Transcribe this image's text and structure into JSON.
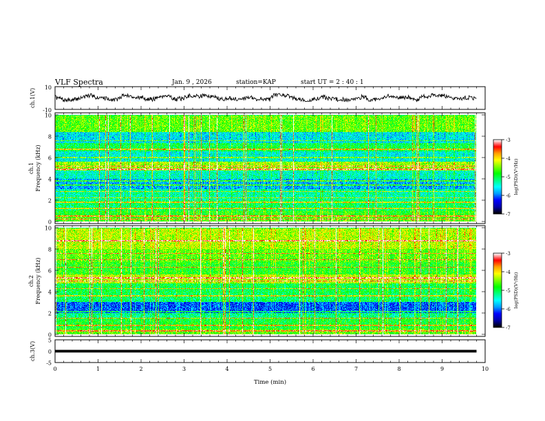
{
  "header": {
    "title": "VLF Spectra",
    "date": "Jan. 9 , 2026",
    "station": "station=KAP",
    "start": "start UT = 2 : 40 : 1"
  },
  "colorbar": {
    "label": "log(PSD)(V²/Hz)",
    "ticks": [
      "-3",
      "-4",
      "-5",
      "-6",
      "-7"
    ],
    "range": [
      -7,
      -3
    ],
    "colors": [
      "#000000",
      "#0000aa",
      "#0000ff",
      "#00a0ff",
      "#00ffff",
      "#00ff80",
      "#00ff00",
      "#80ff00",
      "#ffff00",
      "#ffa000",
      "#ff0000",
      "#ffffff"
    ]
  },
  "chart_data": [
    {
      "type": "line",
      "title": "",
      "ylabel": "ch.1(V)",
      "xlabel": "",
      "xlim": [
        0,
        10
      ],
      "ylim": [
        -10,
        10
      ],
      "y_ticks": [
        "10",
        "-10"
      ],
      "series": [
        {
          "name": "ch.1",
          "x_range": [
            0,
            9.8
          ],
          "mean": 0,
          "amplitude": 3.5,
          "description": "noisy waveform"
        }
      ]
    },
    {
      "type": "heatmap",
      "title": "",
      "ylabel_channel": "ch.1",
      "ylabel": "Frequency (kHz)",
      "xlim": [
        0,
        9.8
      ],
      "ylim": [
        0,
        10
      ],
      "y_ticks": [
        "0",
        "2",
        "4",
        "6",
        "8",
        "10"
      ],
      "value_range": [
        -7,
        -3
      ],
      "bands": [
        {
          "f_lo": 0.0,
          "f_hi": 0.5,
          "level": -4.6
        },
        {
          "f_lo": 0.5,
          "f_hi": 1.0,
          "level": -4.8
        },
        {
          "f_lo": 1.0,
          "f_hi": 2.0,
          "level": -5.1
        },
        {
          "f_lo": 2.0,
          "f_hi": 3.0,
          "level": -5.3
        },
        {
          "f_lo": 3.0,
          "f_hi": 4.0,
          "level": -5.8
        },
        {
          "f_lo": 4.0,
          "f_hi": 4.8,
          "level": -5.4
        },
        {
          "f_lo": 4.8,
          "f_hi": 5.6,
          "level": -4.4
        },
        {
          "f_lo": 5.6,
          "f_hi": 6.6,
          "level": -5.5
        },
        {
          "f_lo": 6.6,
          "f_hi": 7.4,
          "level": -5.0
        },
        {
          "f_lo": 7.4,
          "f_hi": 8.4,
          "level": -5.6
        },
        {
          "f_lo": 8.4,
          "f_hi": 10.0,
          "level": -4.6
        }
      ],
      "lines_khz": [
        0.2,
        0.5,
        1.2,
        1.8,
        2.2,
        2.8,
        3.4,
        3.8,
        4.9,
        5.2,
        6.0,
        6.8,
        7.6
      ],
      "seed": 17
    },
    {
      "type": "heatmap",
      "title": "",
      "ylabel_channel": "ch.2",
      "ylabel": "Frequency (kHz)",
      "xlim": [
        0,
        9.8
      ],
      "ylim": [
        0,
        10
      ],
      "y_ticks": [
        "0",
        "2",
        "4",
        "6",
        "8",
        "10"
      ],
      "value_range": [
        -7,
        -3
      ],
      "bands": [
        {
          "f_lo": 0.0,
          "f_hi": 0.5,
          "level": -4.6
        },
        {
          "f_lo": 0.5,
          "f_hi": 1.5,
          "level": -4.9
        },
        {
          "f_lo": 1.5,
          "f_hi": 2.0,
          "level": -5.2
        },
        {
          "f_lo": 2.0,
          "f_hi": 3.0,
          "level": -6.1
        },
        {
          "f_lo": 3.0,
          "f_hi": 3.8,
          "level": -5.1
        },
        {
          "f_lo": 3.8,
          "f_hi": 4.8,
          "level": -5.0
        },
        {
          "f_lo": 4.8,
          "f_hi": 5.6,
          "level": -4.3
        },
        {
          "f_lo": 5.6,
          "f_hi": 6.8,
          "level": -4.8
        },
        {
          "f_lo": 6.8,
          "f_hi": 8.0,
          "level": -4.6
        },
        {
          "f_lo": 8.0,
          "f_hi": 10.0,
          "level": -4.3
        }
      ],
      "lines_khz": [
        0.3,
        0.8,
        1.5,
        2.1,
        3.6,
        4.3,
        5.0,
        5.3,
        6.3,
        7.0,
        7.6,
        8.8
      ],
      "seed": 41
    },
    {
      "type": "line",
      "title": "",
      "ylabel": "ch.3(V)",
      "xlabel": "Time (min)",
      "xlim": [
        0,
        10
      ],
      "ylim": [
        -5,
        5
      ],
      "y_ticks": [
        "5",
        "0",
        "-5"
      ],
      "x_ticks": [
        "0",
        "1",
        "2",
        "3",
        "4",
        "5",
        "6",
        "7",
        "8",
        "9",
        "10"
      ],
      "series": [
        {
          "name": "ch.3",
          "x_range": [
            0,
            9.8
          ],
          "mean": 0,
          "amplitude": 0.6,
          "description": "flat thick trace"
        }
      ]
    }
  ]
}
